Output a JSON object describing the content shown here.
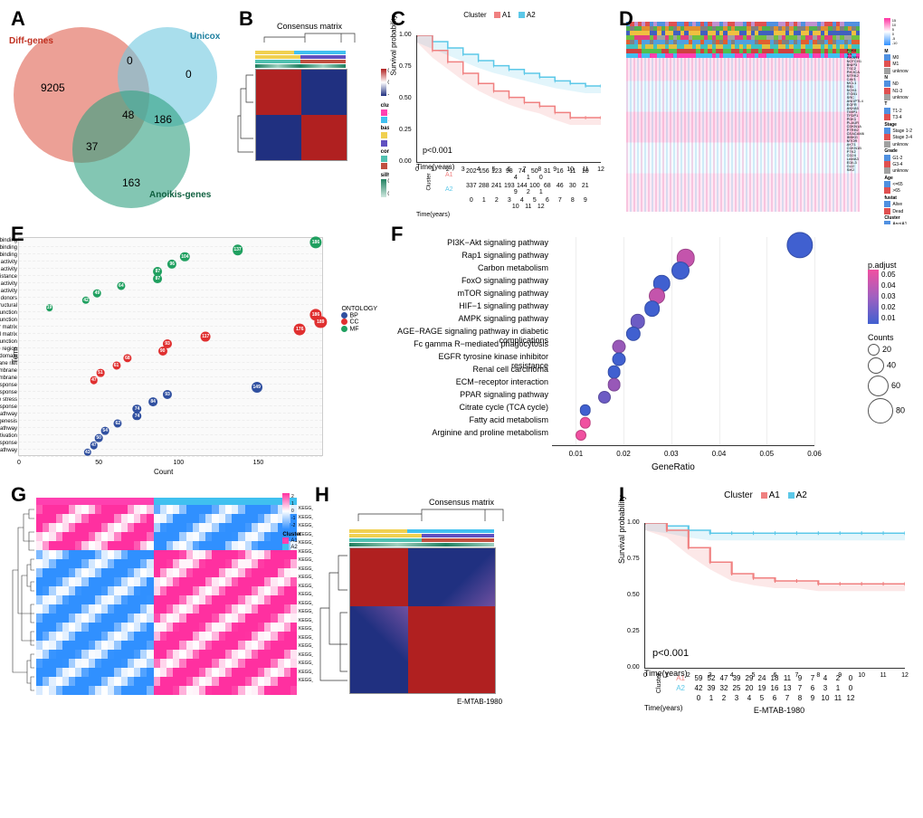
{
  "labels": {
    "A": "A",
    "B": "B",
    "C": "C",
    "D": "D",
    "E": "E",
    "F": "F",
    "G": "G",
    "H": "H",
    "I": "I"
  },
  "colors": {
    "a1": "#f08080",
    "a2": "#5cc8e8",
    "venn_diff": "#e06050",
    "venn_unicox": "#70c8e0",
    "venn_anoikis": "#30a080",
    "cm_high": "#b02020",
    "cm_low": "#203080",
    "ont_bp": "#3050a0",
    "ont_cc": "#e03030",
    "ont_mf": "#20a060",
    "padj_low": "#4060d0",
    "padj_high": "#f050a0",
    "gsva_high": "#ff30a0",
    "gsva_low": "#3090ff",
    "cluster_a1_annot": "#ff40b0",
    "cluster_a2_annot": "#40c0f0",
    "basis1": "#f0d050",
    "basis2": "#6050c0",
    "consensus1": "#50c0b0",
    "consensus2": "#c05040",
    "silh_high": "#208060",
    "silh_low": "#a0d0c0"
  },
  "panelA": {
    "sets": {
      "diff": "Diff-genes",
      "unicox": "Unicox",
      "anoikis": "Anoikis-genes"
    },
    "counts": {
      "diff_only": 9205,
      "unicox_only": 0,
      "anoikis_only": 163,
      "diff_unicox": 0,
      "diff_anoikis": 37,
      "unicox_anoikis": 186,
      "all": 48
    }
  },
  "panelB": {
    "title": "Consensus matrix",
    "legend": {
      "cluster": "cluster",
      "a1": "A1",
      "a2": "A2",
      "basis": "basis",
      "b1": "1",
      "b2": "2",
      "consensus": "consensus",
      "c1": "1",
      "c2": "2",
      "silhouette": "silhouette"
    },
    "scale": {
      "min": -0.4,
      "mid": 0.4,
      "max": 0.8
    },
    "silh_range": {
      "min": 0.33,
      "max": 0.96
    }
  },
  "panelC": {
    "legend_title": "Cluster",
    "clusters": [
      "A1",
      "A2"
    ],
    "pvalue": "p<0.001",
    "ylabel": "Survival probability",
    "xlabel": "Time(years)",
    "xticks": [
      0,
      1,
      2,
      3,
      4,
      5,
      6,
      7,
      8,
      9,
      10,
      11,
      12
    ],
    "yticks": [
      "0.00",
      "0.25",
      "0.50",
      "0.75",
      "1.00"
    ],
    "curve_a1": [
      [
        0,
        1.0
      ],
      [
        1,
        0.88
      ],
      [
        2,
        0.79
      ],
      [
        3,
        0.7
      ],
      [
        4,
        0.62
      ],
      [
        5,
        0.56
      ],
      [
        6,
        0.51
      ],
      [
        7,
        0.47
      ],
      [
        8,
        0.44
      ],
      [
        9,
        0.39
      ],
      [
        10,
        0.35
      ],
      [
        11,
        0.35
      ],
      [
        12,
        0.35
      ]
    ],
    "curve_a2": [
      [
        0,
        1.0
      ],
      [
        1,
        0.95
      ],
      [
        2,
        0.9
      ],
      [
        3,
        0.85
      ],
      [
        4,
        0.8
      ],
      [
        5,
        0.76
      ],
      [
        6,
        0.73
      ],
      [
        7,
        0.7
      ],
      [
        8,
        0.67
      ],
      [
        9,
        0.64
      ],
      [
        10,
        0.62
      ],
      [
        11,
        0.6
      ],
      [
        12,
        0.6
      ]
    ],
    "risk_label": "Cluster",
    "risk_a1": [
      202,
      156,
      123,
      98,
      74,
      50,
      31,
      16,
      11,
      10,
      4,
      1,
      0
    ],
    "risk_a2": [
      337,
      288,
      241,
      193,
      144,
      100,
      68,
      46,
      30,
      21,
      9,
      2,
      1
    ]
  },
  "panelD": {
    "annot_tracks": [
      "M",
      "N",
      "T",
      "Stage",
      "Grade",
      "Age",
      "fustat",
      "Cluster"
    ],
    "genes": [
      "PDK4",
      "ID1",
      "PIK3R1",
      "NOTCH1",
      "BNIP3",
      "TSC2",
      "PIK3CA",
      "NTRK2",
      "CAV1",
      "MCL1",
      "RB1",
      "NOX4",
      "ITGB1",
      "SRC",
      "ANGPTL4",
      "EGFR",
      "ANXA5",
      "TIMP1",
      "TFDP1",
      "PDK1",
      "PLAUR",
      "CDKN1A",
      "PTRH2",
      "CEACAM6",
      "IKBKG",
      "MTOR",
      "AKT1",
      "CDKN1B",
      "PTK2",
      "CD24",
      "LAMA3",
      "EDIL3",
      "GLI2",
      "SIK2"
    ],
    "legends": {
      "m": {
        "title": "M",
        "items": [
          "M0",
          "M1",
          "unknow"
        ]
      },
      "n": {
        "title": "N",
        "items": [
          "N0",
          "N1-3",
          "unknow"
        ]
      },
      "t": {
        "title": "T",
        "items": [
          "T1-2",
          "T3-4"
        ]
      },
      "stage": {
        "title": "Stage",
        "items": [
          "Stage 1-2",
          "Stage 3-4",
          "unknow"
        ]
      },
      "grade": {
        "title": "Grade",
        "items": [
          "G1-2",
          "G3-4",
          "unknow"
        ]
      },
      "age": {
        "title": "Age",
        "items": [
          "<=65",
          ">65"
        ]
      },
      "fustat": {
        "title": "fustat",
        "items": [
          "Alive",
          "Dead"
        ]
      },
      "cluster": {
        "title": "Cluster",
        "items": [
          "AnoiA1",
          "AnoiA2"
        ]
      }
    },
    "scale": [
      -10,
      -5,
      0,
      5,
      10,
      15
    ]
  },
  "panelE": {
    "ylabel": "Term",
    "xlabel": "Count",
    "xticks": [
      0,
      50,
      100,
      150
    ],
    "legend_title": "ONTOLOGY",
    "legend_items": [
      "BP",
      "CC",
      "MF"
    ],
    "terms": [
      {
        "name": "cell adhesion molecule binding",
        "count": 186,
        "ont": "MF"
      },
      {
        "name": "cadherin binding",
        "count": 137,
        "ont": "MF"
      },
      {
        "name": "actin binding",
        "count": 104,
        "ont": "MF"
      },
      {
        "name": "enzyme inhibitor activity",
        "count": 96,
        "ont": "MF"
      },
      {
        "name": "GTPase activity",
        "count": 87,
        "ont": "MF"
      },
      {
        "name": "extracellular matrix structural constituent conferring compression resistance",
        "count": 87,
        "ont": "MF"
      },
      {
        "name": "molecular adaptor activity",
        "count": 64,
        "ont": "MF"
      },
      {
        "name": "protein kinase regulator activity",
        "count": 49,
        "ont": "MF"
      },
      {
        "name": "oxidoreductase activity, acting on CH−OH group of donors",
        "count": 42,
        "ont": "MF"
      },
      {
        "name": "extracellular matrix structural",
        "count": 19,
        "ont": "MF"
      },
      {
        "name": "cell−substrate junction",
        "count": 186,
        "ont": "CC"
      },
      {
        "name": "cell−substrate adherens junction",
        "count": 189,
        "ont": "CC"
      },
      {
        "name": "collagen−containing extracellular matrix",
        "count": 176,
        "ont": "CC"
      },
      {
        "name": "mitochondrial matrix",
        "count": 117,
        "ont": "CC"
      },
      {
        "name": "cell−cell junction",
        "count": 93,
        "ont": "CC"
      },
      {
        "name": "membrane region",
        "count": 90,
        "ont": "CC"
      },
      {
        "name": "membrane microdomain",
        "count": 68,
        "ont": "CC"
      },
      {
        "name": "membrane raft",
        "count": 61,
        "ont": "CC"
      },
      {
        "name": "extrinsic component of membrane",
        "count": 51,
        "ont": "CC"
      },
      {
        "name": "outer membrane",
        "count": 47,
        "ont": "CC"
      },
      {
        "name": "neutrophil activation involved in immune response",
        "count": 149,
        "ont": "BP"
      },
      {
        "name": "regulation of inflammatory response",
        "count": 93,
        "ont": "BP"
      },
      {
        "name": "response to oxidative stress",
        "count": 84,
        "ont": "BP"
      },
      {
        "name": "regulation of innate immune response",
        "count": 74,
        "ont": "BP"
      },
      {
        "name": "intrinsic apoptotic signaling pathway",
        "count": 74,
        "ont": "BP"
      },
      {
        "name": "regulation of angiogenesis",
        "count": 62,
        "ont": "BP"
      },
      {
        "name": "canonical Wnt signaling pathway",
        "count": 54,
        "ont": "BP"
      },
      {
        "name": "positive regulation of lymphocyte activation",
        "count": 50,
        "ont": "BP"
      },
      {
        "name": "acute inflammatory response",
        "count": 47,
        "ont": "BP"
      },
      {
        "name": "Notch signaling pathway",
        "count": 43,
        "ont": "BP"
      }
    ]
  },
  "panelF": {
    "xlabel": "GeneRatio",
    "xticks": [
      "0.01",
      "0.02",
      "0.03",
      "0.04",
      "0.05",
      "0.06"
    ],
    "padj_title": "p.adjust",
    "padj_ticks": [
      "0.05",
      "0.04",
      "0.03",
      "0.02",
      "0.01"
    ],
    "count_title": "Counts",
    "count_ticks": [
      20,
      40,
      60,
      80
    ],
    "terms": [
      {
        "name": "PI3K−Akt signaling pathway",
        "ratio": 0.057,
        "count": 85,
        "padj": 0.01
      },
      {
        "name": "Rap1 signaling pathway",
        "ratio": 0.033,
        "count": 50,
        "padj": 0.04
      },
      {
        "name": "Carbon metabolism",
        "ratio": 0.032,
        "count": 48,
        "padj": 0.01
      },
      {
        "name": "FoxO signaling pathway",
        "ratio": 0.028,
        "count": 42,
        "padj": 0.01
      },
      {
        "name": "mTOR signaling pathway",
        "ratio": 0.027,
        "count": 40,
        "padj": 0.04
      },
      {
        "name": "HIF−1 signaling pathway",
        "ratio": 0.026,
        "count": 39,
        "padj": 0.01
      },
      {
        "name": "AMPK signaling pathway",
        "ratio": 0.023,
        "count": 34,
        "padj": 0.02
      },
      {
        "name": "AGE−RAGE signaling pathway in diabetic\ncomplications",
        "ratio": 0.022,
        "count": 33,
        "padj": 0.01
      },
      {
        "name": "Fc gamma R−mediated phagocytosis",
        "ratio": 0.019,
        "count": 28,
        "padj": 0.03
      },
      {
        "name": "EGFR tyrosine kinase inhibitor\nresistance",
        "ratio": 0.019,
        "count": 28,
        "padj": 0.01
      },
      {
        "name": "Renal cell carcinoma",
        "ratio": 0.018,
        "count": 27,
        "padj": 0.01
      },
      {
        "name": "ECM−receptor interaction",
        "ratio": 0.018,
        "count": 27,
        "padj": 0.03
      },
      {
        "name": "PPAR signaling pathway",
        "ratio": 0.016,
        "count": 24,
        "padj": 0.02
      },
      {
        "name": "Citrate cycle (TCA cycle)",
        "ratio": 0.012,
        "count": 18,
        "padj": 0.01
      },
      {
        "name": "Fatty acid metabolism",
        "ratio": 0.012,
        "count": 18,
        "padj": 0.05
      },
      {
        "name": "Arginine and proline metabolism",
        "ratio": 0.011,
        "count": 16,
        "padj": 0.05
      }
    ]
  },
  "panelG": {
    "legend_title": "Cluster",
    "clusters": [
      "A1",
      "A2"
    ],
    "scale": [
      -2,
      -1,
      0,
      1,
      2
    ],
    "pathways": [
      "KEGG_GLYCOSAMINOGLYCAN_BIOSYNTHESIS_CHONDROITIN_SULFATE",
      "KEGG_REGULATION_OF_AUTOPHAGY",
      "KEGG_INOSITOL_PHOSPHATE_METABOLISM",
      "KEGG_ADIPOCYTOKINE_SIGNALING_PATHWAY",
      "KEGG_MTOR_SIGNALING_PATHWAY",
      "KEGG_HISTIDINE_METABOLISM",
      "KEGG_LYSINE_DEGRADATION",
      "KEGG_ONE_CARBON_POOL_BY_FOLATE",
      "KEGG_PEROXISOME",
      "KEGG_TRYPTOPHAN_METABOLISM",
      "KEGG_BETA_ALANINE_METABOLISM",
      "KEGG_LIMONENE_AND_PINENE_DEGRADATION",
      "KEGG_GLYCINE_SERINE_AND_THREONINE_METABOLISM",
      "KEGG_BUTANOATE_METABOLISM",
      "KEGG_FATTY_ACID_METABOLISM",
      "KEGG_PROPANOATE_METABOLISM",
      "KEGG_VALINE_LEUCINE_AND_ISOLEUCINE_DEGRADATION",
      "KEGG_PPAR_SIGNALING_PATHWAY",
      "KEGG_PROXIMAL_TUBULE_BICARBONATE_RECLAMATION",
      "KEGG_TERPENOID_BACKBONE_BIOSYNTHESIS",
      "KEGG_CITRATE_CYCLE_TCA_CYCLE"
    ]
  },
  "panelH": {
    "title": "Consensus matrix",
    "subtitle": "E-MTAB-1980",
    "silh_range": {
      "min": -0.1,
      "max": 0.96
    }
  },
  "panelI": {
    "subtitle": "E-MTAB-1980",
    "legend_title": "Cluster",
    "clusters": [
      "A1",
      "A2"
    ],
    "pvalue": "p<0.001",
    "ylabel": "Survival probability",
    "xlabel": "Time(years)",
    "xticks": [
      0,
      1,
      2,
      3,
      4,
      5,
      6,
      7,
      8,
      9,
      10,
      11,
      12
    ],
    "yticks": [
      "0.00",
      "0.25",
      "0.50",
      "0.75",
      "1.00"
    ],
    "curve_a1": [
      [
        0,
        1.0
      ],
      [
        1,
        0.95
      ],
      [
        2,
        0.83
      ],
      [
        3,
        0.73
      ],
      [
        4,
        0.65
      ],
      [
        5,
        0.62
      ],
      [
        6,
        0.6
      ],
      [
        7,
        0.6
      ],
      [
        8,
        0.58
      ],
      [
        9,
        0.58
      ],
      [
        10,
        0.58
      ],
      [
        11,
        0.58
      ],
      [
        12,
        0.58
      ]
    ],
    "curve_a2": [
      [
        0,
        1.0
      ],
      [
        1,
        0.98
      ],
      [
        2,
        0.95
      ],
      [
        3,
        0.93
      ],
      [
        4,
        0.93
      ],
      [
        5,
        0.93
      ],
      [
        6,
        0.93
      ],
      [
        7,
        0.93
      ],
      [
        8,
        0.93
      ],
      [
        9,
        0.93
      ],
      [
        10,
        0.93
      ],
      [
        11,
        0.93
      ],
      [
        12,
        0.93
      ]
    ],
    "risk_label": "Cluster",
    "risk_a1": [
      59,
      52,
      47,
      39,
      29,
      24,
      18,
      11,
      9,
      7,
      4,
      2,
      0
    ],
    "risk_a2": [
      42,
      39,
      32,
      25,
      20,
      19,
      16,
      13,
      7,
      6,
      3,
      1,
      0
    ]
  }
}
